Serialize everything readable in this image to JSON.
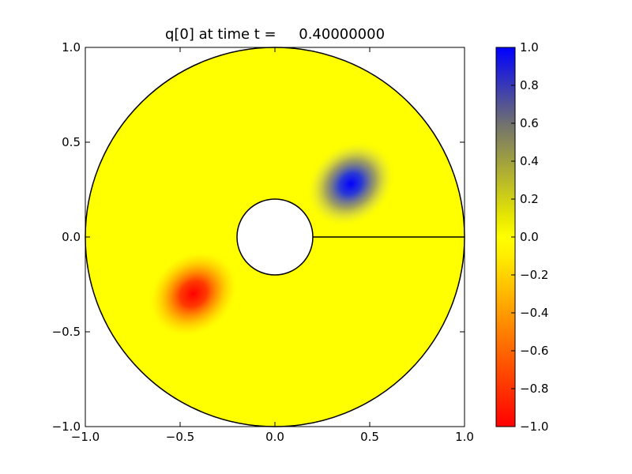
{
  "chart_data": {
    "type": "heatmap",
    "title": "q[0] at time t =     0.40000000",
    "xlabel": "",
    "ylabel": "",
    "xlim": [
      -1.0,
      1.0
    ],
    "ylim": [
      -1.0,
      1.0
    ],
    "x_ticks": [
      "−1.0",
      "−0.5",
      "0.0",
      "0.5",
      "1.0"
    ],
    "x_tick_values": [
      -1.0,
      -0.5,
      0.0,
      0.5,
      1.0
    ],
    "y_ticks": [
      "−1.0",
      "−0.5",
      "0.0",
      "0.5",
      "1.0"
    ],
    "y_tick_values": [
      -1.0,
      -0.5,
      0.0,
      0.5,
      1.0
    ],
    "grid": false,
    "domain": {
      "shape": "annulus",
      "inner_radius": 0.2,
      "outer_radius": 1.0,
      "cut_line": {
        "from": [
          0.2,
          0.0
        ],
        "to": [
          1.0,
          0.0
        ]
      }
    },
    "background_value": 0.0,
    "blobs": [
      {
        "center": [
          0.4,
          0.28
        ],
        "value": 1.0,
        "radius": 0.22
      },
      {
        "center": [
          -0.43,
          -0.3
        ],
        "value": -1.0,
        "radius": 0.22
      }
    ],
    "colorbar": {
      "range": [
        -1.0,
        1.0
      ],
      "placement": "right",
      "tick_values": [
        1.0,
        0.8,
        0.6,
        0.4,
        0.2,
        0.0,
        -0.2,
        -0.4,
        -0.6,
        -0.8,
        -1.0
      ],
      "tick_labels": [
        "1.0",
        "0.8",
        "0.6",
        "0.4",
        "0.2",
        "0.0",
        "−0.2",
        "−0.4",
        "−0.6",
        "−0.8",
        "−1.0"
      ],
      "colors": {
        "min": "#ff0000",
        "mid_low": "#ffa500",
        "zero": "#ffff00",
        "mid_high": "#808080",
        "max": "#0000ff"
      }
    }
  }
}
